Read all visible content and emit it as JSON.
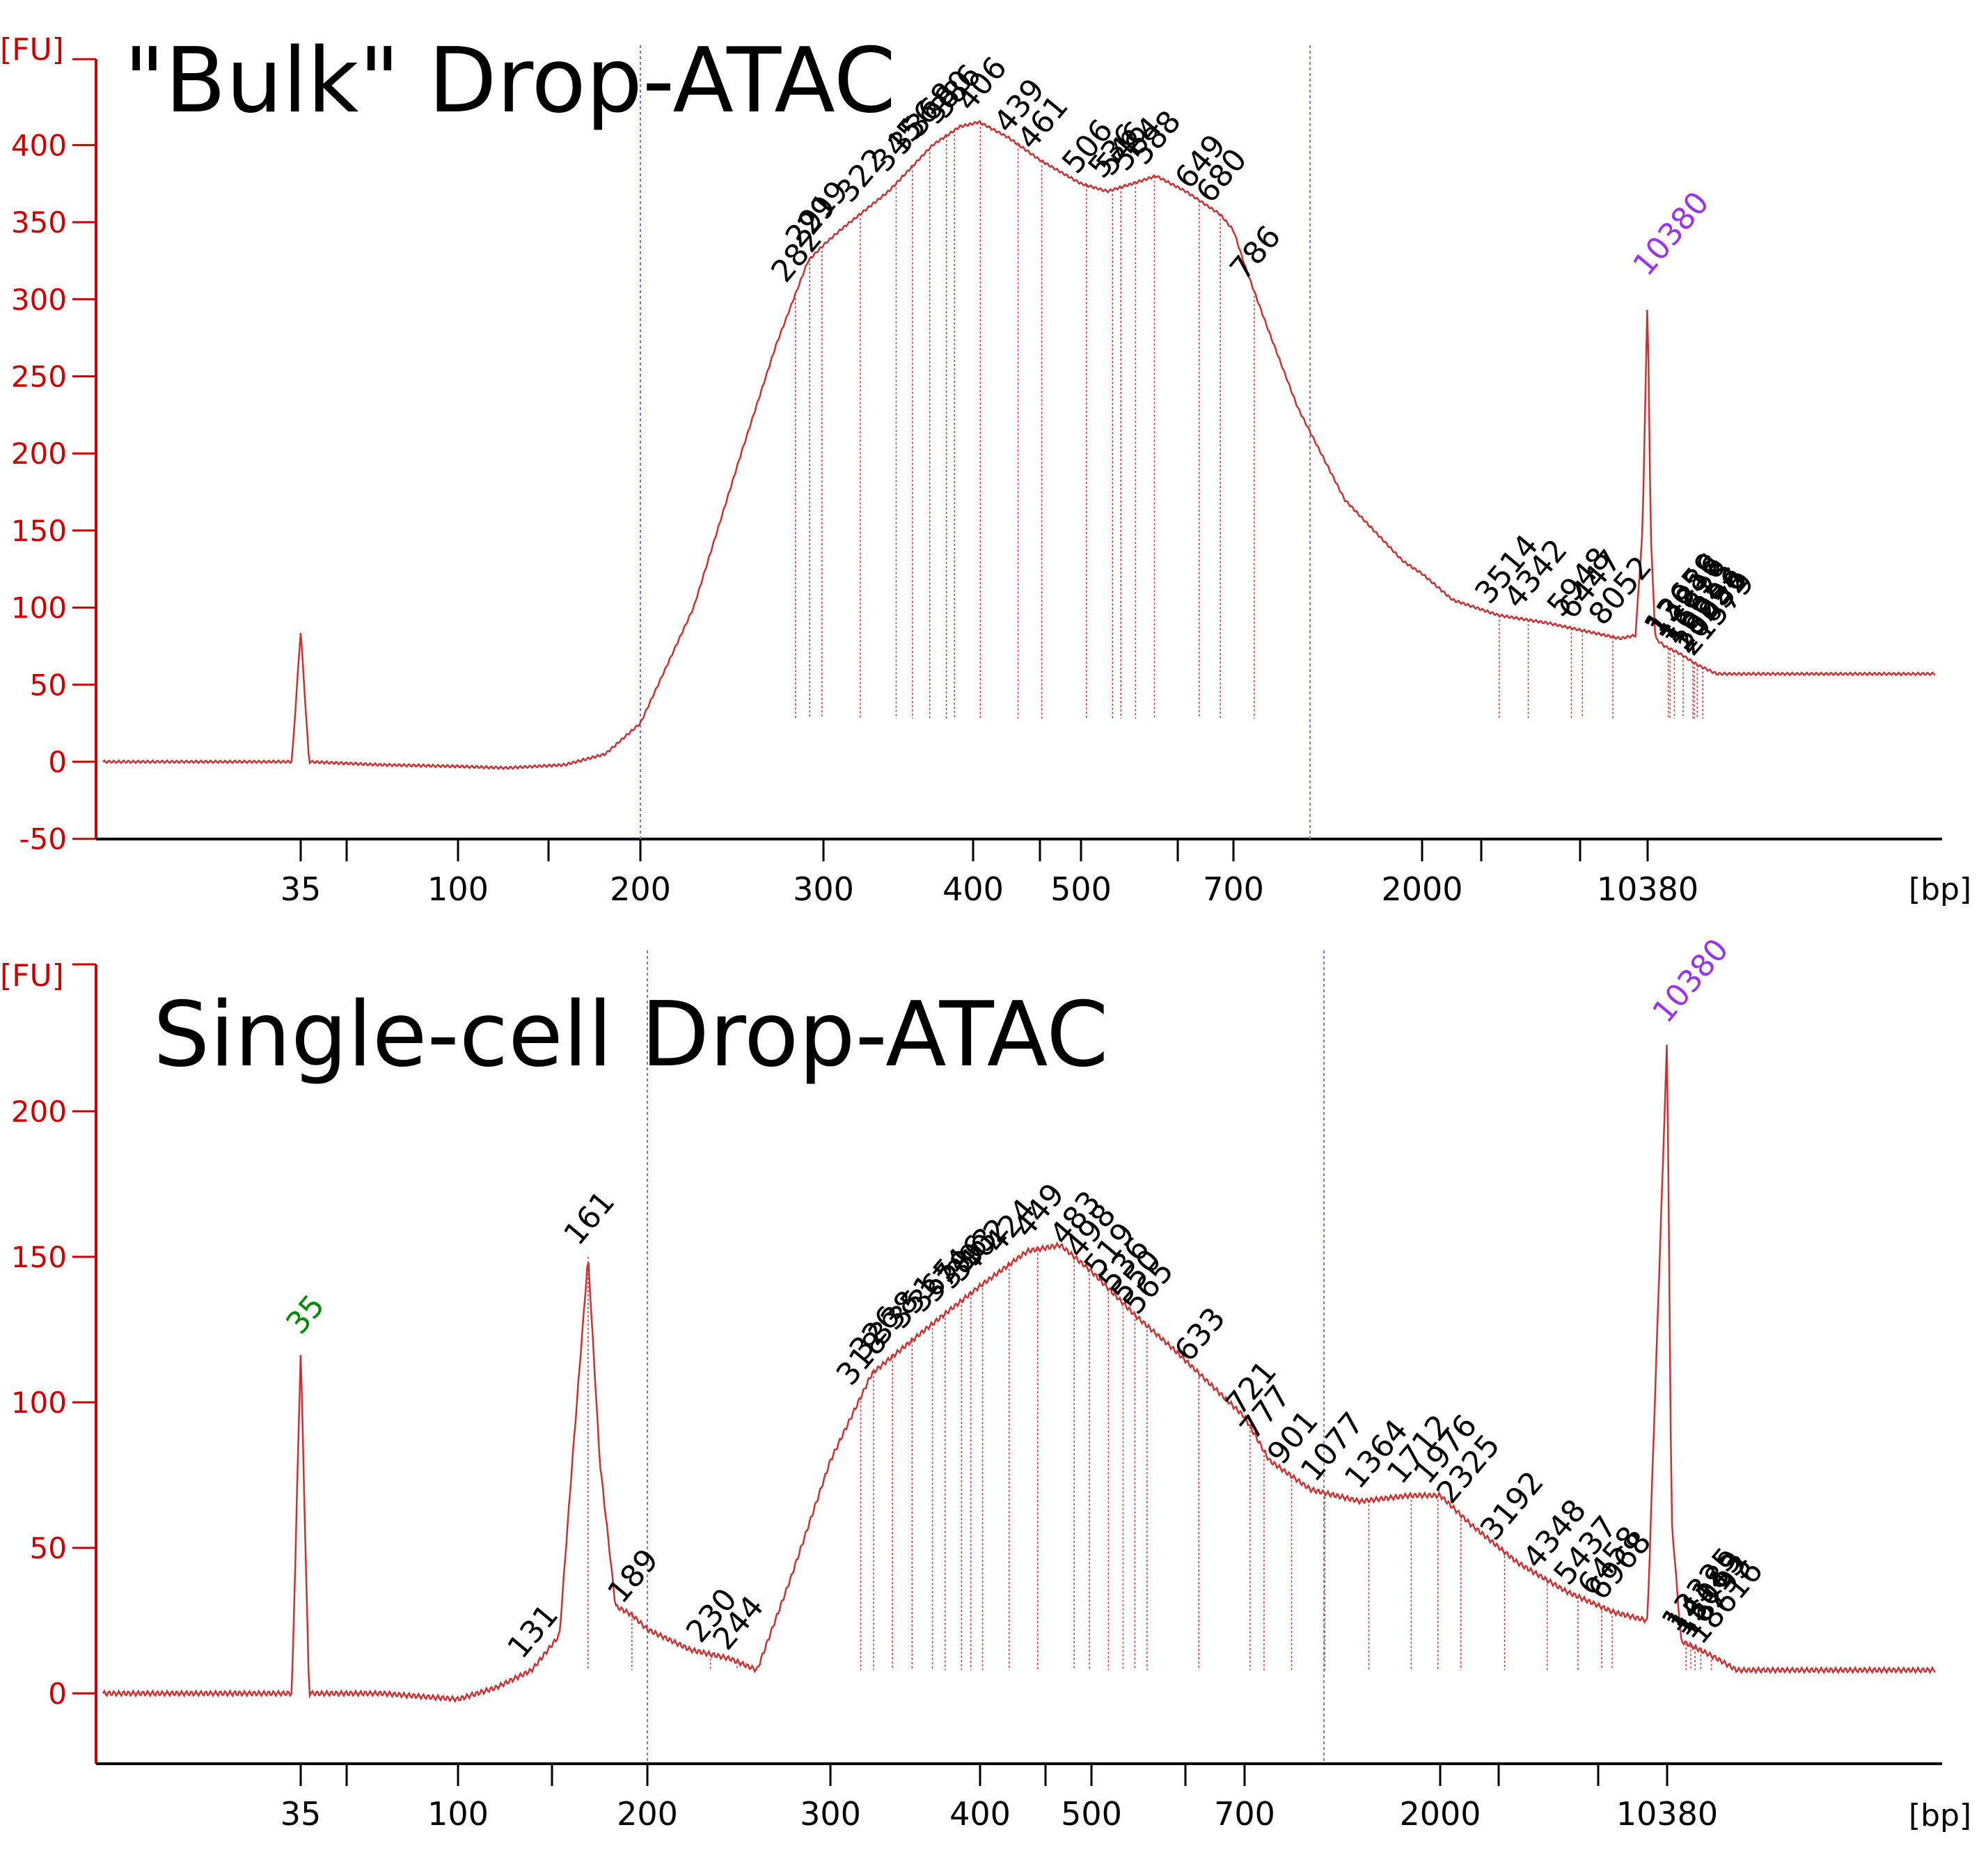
{
  "chart_data": [
    {
      "type": "line",
      "title": "\"Bulk\" Drop-ATAC",
      "ylabel_unit": "[FU]",
      "xlabel_unit": "[bp]",
      "yticks": [
        -50,
        0,
        50,
        100,
        150,
        200,
        250,
        300,
        350,
        400
      ],
      "ylim": [
        -50,
        450
      ],
      "xticks": [
        "35",
        "100",
        "200",
        "300",
        "400",
        "500",
        "700",
        "2000",
        "10380"
      ],
      "x_scale": "electropherogram size ladder (non-linear)",
      "marker_labels": [
        {
          "label": "",
          "size_bp": 35,
          "color": "#008800"
        },
        {
          "label": "10380",
          "size_bp": 10380,
          "color": "#9933ee"
        }
      ],
      "peak_labels": [
        "282",
        "291",
        "299",
        "322",
        "345",
        "356",
        "368",
        "380",
        "386",
        "406",
        "439",
        "461",
        "506",
        "536",
        "546",
        "564",
        "588",
        "649",
        "680",
        "786",
        "3514",
        "4342",
        "5948",
        "6447",
        "8052",
        "13659",
        "13986",
        "14816",
        "16625",
        "18924",
        "19296",
        "20052",
        "21579"
      ],
      "series": [
        {
          "color": "#c83232",
          "points_bp_fu": [
            [
              20,
              0
            ],
            [
              33,
              0
            ],
            [
              35,
              85
            ],
            [
              37,
              0
            ],
            [
              60,
              -2
            ],
            [
              100,
              -3
            ],
            [
              120,
              -4
            ],
            [
              150,
              -2
            ],
            [
              175,
              5
            ],
            [
              200,
              25
            ],
            [
              225,
              100
            ],
            [
              250,
              200
            ],
            [
              270,
              270
            ],
            [
              290,
              325
            ],
            [
              310,
              345
            ],
            [
              340,
              370
            ],
            [
              370,
              400
            ],
            [
              390,
              412
            ],
            [
              405,
              415
            ],
            [
              430,
              405
            ],
            [
              460,
              390
            ],
            [
              500,
              375
            ],
            [
              530,
              370
            ],
            [
              560,
              375
            ],
            [
              590,
              380
            ],
            [
              630,
              370
            ],
            [
              680,
              355
            ],
            [
              750,
              320
            ],
            [
              850,
              280
            ],
            [
              1000,
              230
            ],
            [
              1300,
              170
            ],
            [
              1800,
              130
            ],
            [
              2500,
              105
            ],
            [
              3500,
              95
            ],
            [
              5000,
              90
            ],
            [
              6500,
              85
            ],
            [
              8500,
              80
            ],
            [
              9500,
              82
            ],
            [
              10000,
              150
            ],
            [
              10380,
              305
            ],
            [
              10800,
              150
            ],
            [
              11500,
              80
            ],
            [
              13000,
              75
            ],
            [
              16000,
              70
            ],
            [
              20000,
              63
            ],
            [
              26000,
              57
            ]
          ]
        }
      ]
    },
    {
      "type": "line",
      "title": "Single-cell Drop-ATAC",
      "ylabel_unit": "[FU]",
      "xlabel_unit": "[bp]",
      "yticks": [
        0,
        50,
        100,
        150,
        200
      ],
      "ylim": [
        -25,
        250
      ],
      "xticks": [
        "35",
        "100",
        "200",
        "300",
        "400",
        "500",
        "700",
        "2000",
        "10380"
      ],
      "x_scale": "electropherogram size ladder (non-linear)",
      "marker_labels": [
        {
          "label": "35",
          "size_bp": 35,
          "color": "#008800"
        },
        {
          "label": "10380",
          "size_bp": 10380,
          "color": "#9933ee"
        }
      ],
      "peak_labels": [
        "131",
        "161",
        "189",
        "230",
        "244",
        "318",
        "326",
        "338",
        "351",
        "365",
        "374",
        "386",
        "393",
        "402",
        "424",
        "449",
        "483",
        "498",
        "519",
        "536",
        "550",
        "565",
        "633",
        "721",
        "777",
        "901",
        "1077",
        "1364",
        "1712",
        "1976",
        "2325",
        "3192",
        "4348",
        "5437",
        "6458",
        "6968",
        "13325",
        "14189",
        "15013",
        "16193",
        "18616"
      ],
      "series": [
        {
          "color": "#c83232",
          "points_bp_fu": [
            [
              20,
              0
            ],
            [
              33,
              0
            ],
            [
              35,
              118
            ],
            [
              37,
              0
            ],
            [
              60,
              0
            ],
            [
              100,
              -2
            ],
            [
              115,
              2
            ],
            [
              131,
              8
            ],
            [
              145,
              20
            ],
            [
              152,
              80
            ],
            [
              161,
              150
            ],
            [
              168,
              80
            ],
            [
              178,
              30
            ],
            [
              189,
              27
            ],
            [
              200,
              22
            ],
            [
              220,
              15
            ],
            [
              240,
              12
            ],
            [
              255,
              8
            ],
            [
              275,
              40
            ],
            [
              300,
              80
            ],
            [
              325,
              110
            ],
            [
              360,
              125
            ],
            [
              400,
              140
            ],
            [
              440,
              152
            ],
            [
              470,
              154
            ],
            [
              500,
              145
            ],
            [
              550,
              130
            ],
            [
              600,
              118
            ],
            [
              700,
              95
            ],
            [
              800,
              80
            ],
            [
              1000,
              70
            ],
            [
              1300,
              66
            ],
            [
              1700,
              68
            ],
            [
              2000,
              68
            ],
            [
              2500,
              58
            ],
            [
              3500,
              45
            ],
            [
              5000,
              35
            ],
            [
              7000,
              28
            ],
            [
              9000,
              25
            ],
            [
              10380,
              225
            ],
            [
              11000,
              60
            ],
            [
              12500,
              18
            ],
            [
              16000,
              15
            ],
            [
              20000,
              12
            ],
            [
              26000,
              8
            ]
          ]
        }
      ]
    }
  ]
}
